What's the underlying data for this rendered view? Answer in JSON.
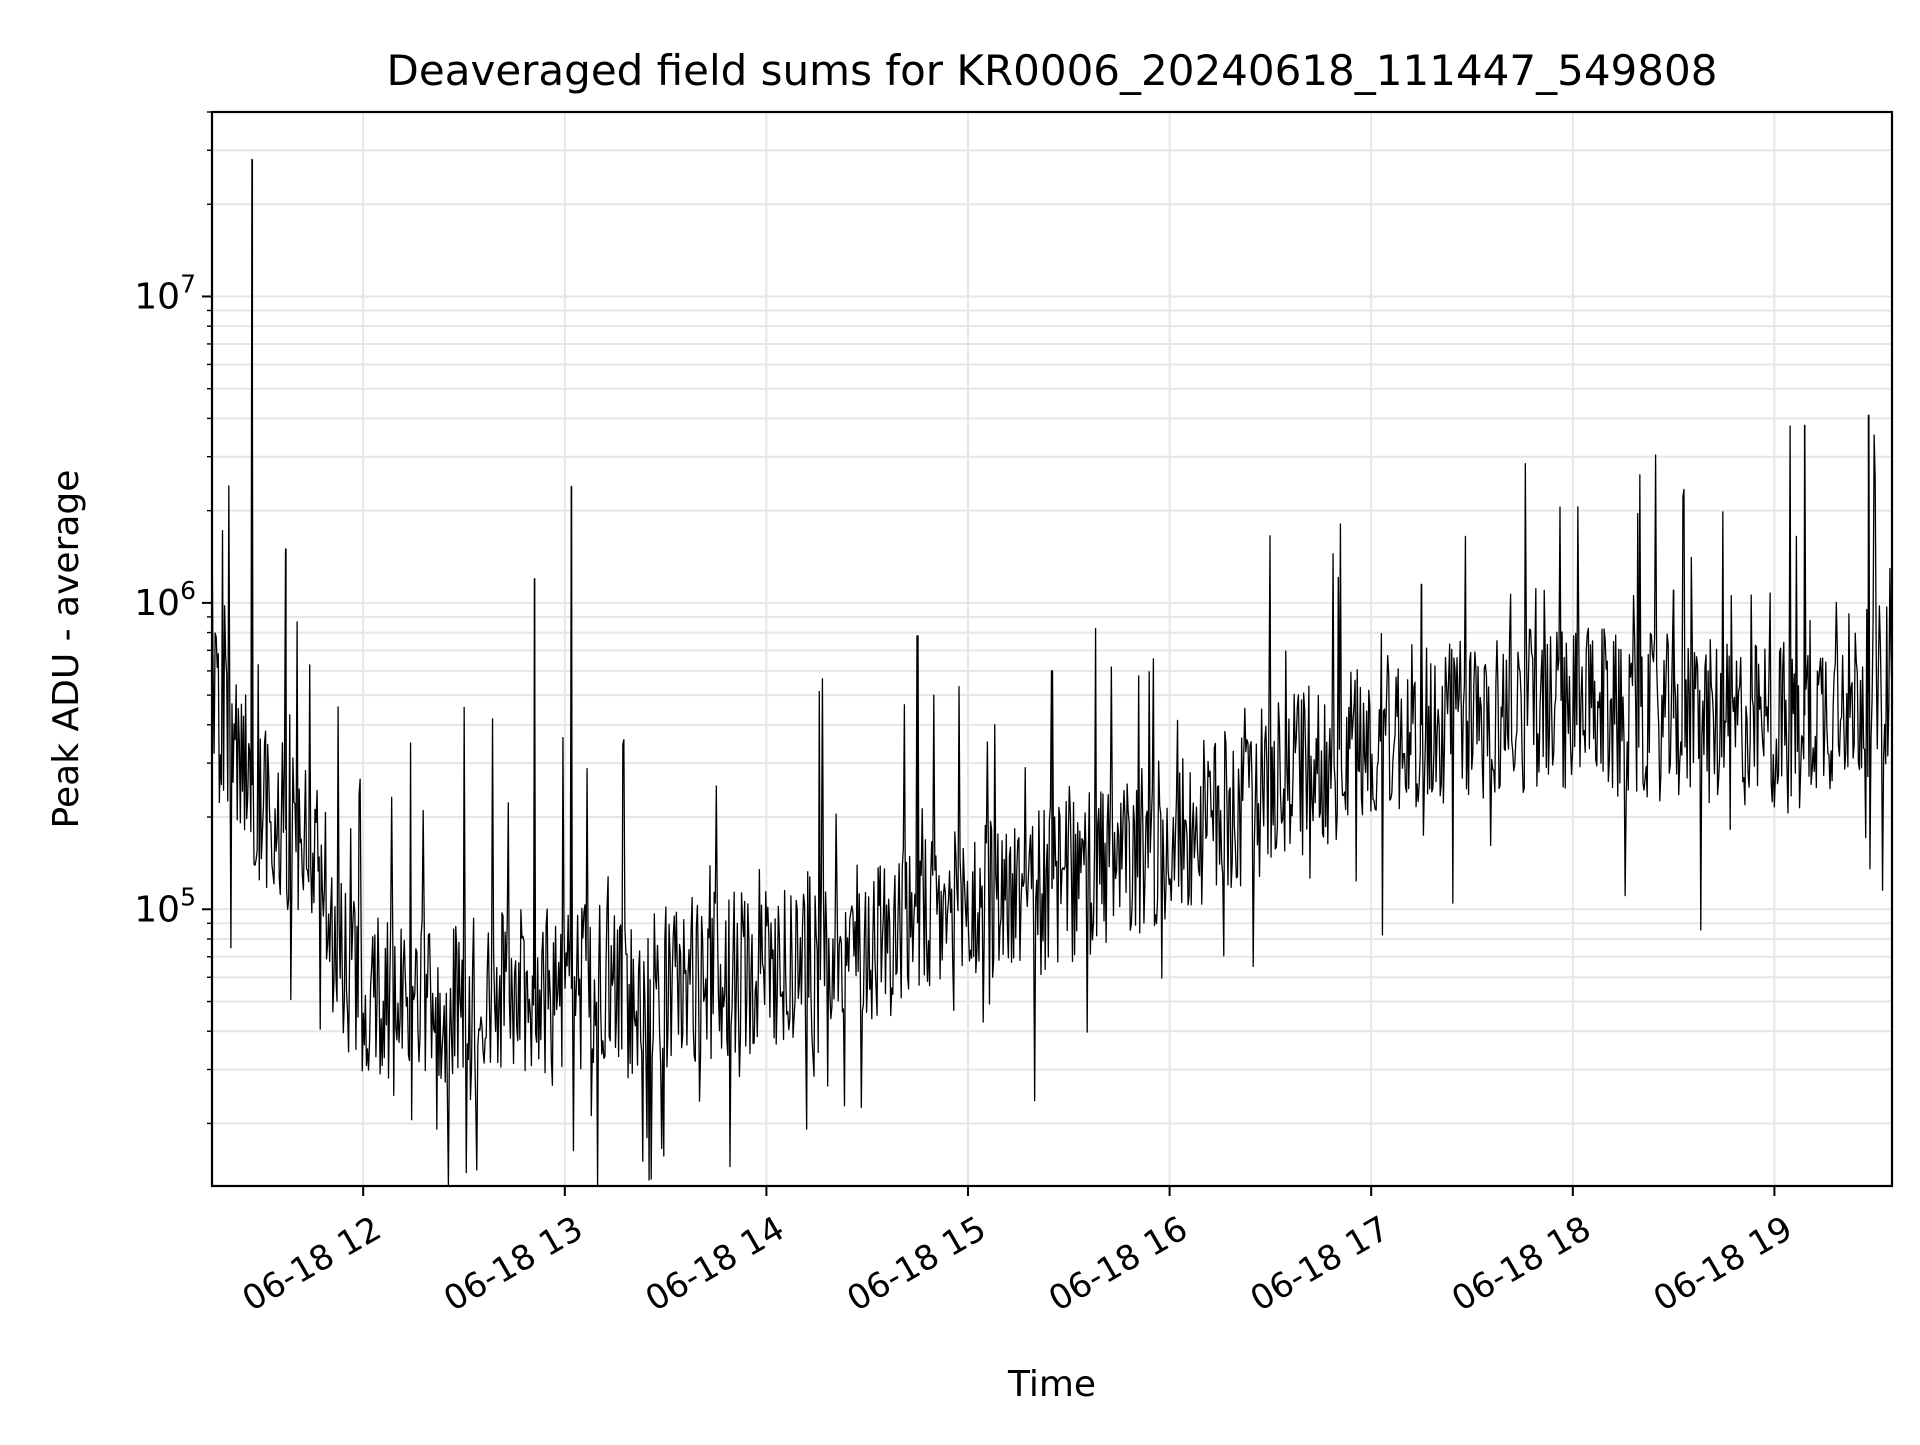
{
  "chart_data": {
    "type": "line",
    "title": "Deaveraged field sums for KR0006_20240618_111447_549808",
    "xlabel": "Time",
    "ylabel": "Peak ADU - average",
    "yscale": "log",
    "ylim": [
      12500,
      40000000
    ],
    "xlim": [
      "2024-06-18 11:15",
      "2024-06-18 19:35"
    ],
    "grid": true,
    "legend": "none",
    "colors": {
      "line": "#000000",
      "grid": "#e6e6e6",
      "axes": "#000000",
      "background": "#ffffff"
    },
    "x_tick_labels": [
      "06-18 12",
      "06-18 13",
      "06-18 14",
      "06-18 15",
      "06-18 16",
      "06-18 17",
      "06-18 18",
      "06-18 19"
    ],
    "x_tick_times": [
      "2024-06-18 12:00",
      "2024-06-18 13:00",
      "2024-06-18 14:00",
      "2024-06-18 15:00",
      "2024-06-18 16:00",
      "2024-06-18 17:00",
      "2024-06-18 18:00",
      "2024-06-18 19:00"
    ],
    "y_ticks": [
      {
        "value": 100000,
        "base": "10",
        "exp": "5"
      },
      {
        "value": 1000000,
        "base": "10",
        "exp": "6"
      },
      {
        "value": 10000000,
        "base": "10",
        "exp": "7"
      }
    ],
    "series": [
      {
        "color": "#000000",
        "x": [
          "2024-06-18 11:15",
          "2024-06-18 11:20",
          "2024-06-18 11:25",
          "2024-06-18 11:30",
          "2024-06-18 11:35",
          "2024-06-18 11:40",
          "2024-06-18 11:45",
          "2024-06-18 11:50",
          "2024-06-18 11:55",
          "2024-06-18 12:00",
          "2024-06-18 12:10",
          "2024-06-18 12:20",
          "2024-06-18 12:30",
          "2024-06-18 12:40",
          "2024-06-18 12:50",
          "2024-06-18 13:00",
          "2024-06-18 13:10",
          "2024-06-18 13:20",
          "2024-06-18 13:30",
          "2024-06-18 13:40",
          "2024-06-18 13:50",
          "2024-06-18 14:00",
          "2024-06-18 14:15",
          "2024-06-18 14:30",
          "2024-06-18 14:45",
          "2024-06-18 15:00",
          "2024-06-18 15:15",
          "2024-06-18 15:30",
          "2024-06-18 15:45",
          "2024-06-18 16:00",
          "2024-06-18 16:15",
          "2024-06-18 16:30",
          "2024-06-18 16:45",
          "2024-06-18 17:00",
          "2024-06-18 17:15",
          "2024-06-18 17:30",
          "2024-06-18 17:45",
          "2024-06-18 18:00",
          "2024-06-18 18:15",
          "2024-06-18 18:30",
          "2024-06-18 18:45",
          "2024-06-18 19:00",
          "2024-06-18 19:15",
          "2024-06-18 19:30",
          "2024-06-18 19:35"
        ],
        "y": [
          450000,
          350000,
          280000,
          220000,
          190000,
          170000,
          150000,
          100000,
          65000,
          55000,
          50000,
          48000,
          50000,
          52000,
          55000,
          55000,
          55000,
          52000,
          55000,
          60000,
          62000,
          65000,
          72000,
          80000,
          90000,
          100000,
          110000,
          120000,
          140000,
          170000,
          200000,
          250000,
          300000,
          350000,
          400000,
          420000,
          450000,
          450000,
          430000,
          420000,
          400000,
          400000,
          450000,
          520000,
          560000
        ],
        "spikes": [
          {
            "x": "2024-06-18 11:27",
            "y": 28000000
          },
          {
            "x": "2024-06-18 11:37",
            "y": 1500000
          },
          {
            "x": "2024-06-18 12:51",
            "y": 1200000
          },
          {
            "x": "2024-06-18 13:02",
            "y": 2400000
          },
          {
            "x": "2024-06-18 14:45",
            "y": 780000
          },
          {
            "x": "2024-06-18 15:25",
            "y": 600000
          },
          {
            "x": "2024-06-18 17:15",
            "y": 1150000
          },
          {
            "x": "2024-06-18 18:30",
            "y": 1100000
          },
          {
            "x": "2024-06-18 19:09",
            "y": 3800000
          },
          {
            "x": "2024-06-18 19:28",
            "y": 4100000
          }
        ]
      }
    ]
  }
}
